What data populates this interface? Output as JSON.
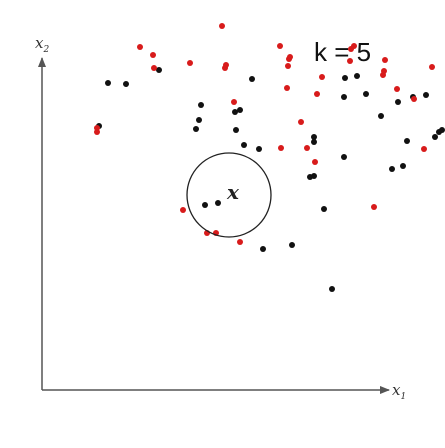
{
  "annotation": {
    "k_label": "k = 5",
    "query_label": "x"
  },
  "axes": {
    "x_label": "x",
    "x_sub": "1",
    "y_label": "x",
    "y_sub": "2"
  },
  "colors": {
    "class_a": "#111111",
    "class_b": "#d81b1b",
    "axis": "#555555"
  },
  "chart_data": {
    "type": "scatter",
    "query_point": {
      "x": 189,
      "y": 197
    },
    "neighborhood_radius": 42,
    "series": [
      {
        "points": [
          [
            57,
            264
          ],
          [
            66,
            307
          ],
          [
            84,
            306
          ],
          [
            117,
            320
          ],
          [
            154,
            261
          ],
          [
            157,
            270
          ],
          [
            159,
            285
          ],
          [
            163,
            185
          ],
          [
            176,
            187
          ],
          [
            193,
            278
          ],
          [
            194,
            260
          ],
          [
            198,
            280
          ],
          [
            202,
            245
          ],
          [
            210,
            311
          ],
          [
            217,
            241
          ],
          [
            221,
            141
          ],
          [
            250,
            145
          ],
          [
            268,
            213
          ],
          [
            272,
            214
          ],
          [
            272,
            248
          ],
          [
            272,
            253
          ],
          [
            282,
            181
          ],
          [
            290,
            101
          ],
          [
            302,
            233
          ],
          [
            302,
            293
          ],
          [
            303,
            312
          ],
          [
            315,
            314
          ],
          [
            324,
            296
          ],
          [
            339,
            274
          ],
          [
            350,
            221
          ],
          [
            356,
            288
          ],
          [
            361,
            224
          ],
          [
            365,
            249
          ],
          [
            371,
            293
          ],
          [
            384,
            295
          ],
          [
            393,
            253
          ],
          [
            397,
            258
          ],
          [
            400,
            260
          ]
        ]
      },
      {
        "points": [
          [
            55,
            258
          ],
          [
            55,
            262
          ],
          [
            98,
            343
          ],
          [
            111,
            335
          ],
          [
            112,
            322
          ],
          [
            141,
            180
          ],
          [
            148,
            327
          ],
          [
            165,
            157
          ],
          [
            174,
            157
          ],
          [
            180,
            364
          ],
          [
            183,
            322
          ],
          [
            184,
            325
          ],
          [
            192,
            288
          ],
          [
            198,
            148
          ],
          [
            239,
            242
          ],
          [
            238,
            344
          ],
          [
            245,
            302
          ],
          [
            246,
            324
          ],
          [
            247,
            331
          ],
          [
            248,
            333
          ],
          [
            259,
            268
          ],
          [
            265,
            242
          ],
          [
            273,
            228
          ],
          [
            275,
            296
          ],
          [
            280,
            313
          ],
          [
            308,
            329
          ],
          [
            309,
            341
          ],
          [
            312,
            344
          ],
          [
            332,
            183
          ],
          [
            341,
            315
          ],
          [
            342,
            319
          ],
          [
            343,
            330
          ],
          [
            355,
            301
          ],
          [
            372,
            291
          ],
          [
            382,
            241
          ],
          [
            390,
            323
          ]
        ]
      }
    ]
  }
}
